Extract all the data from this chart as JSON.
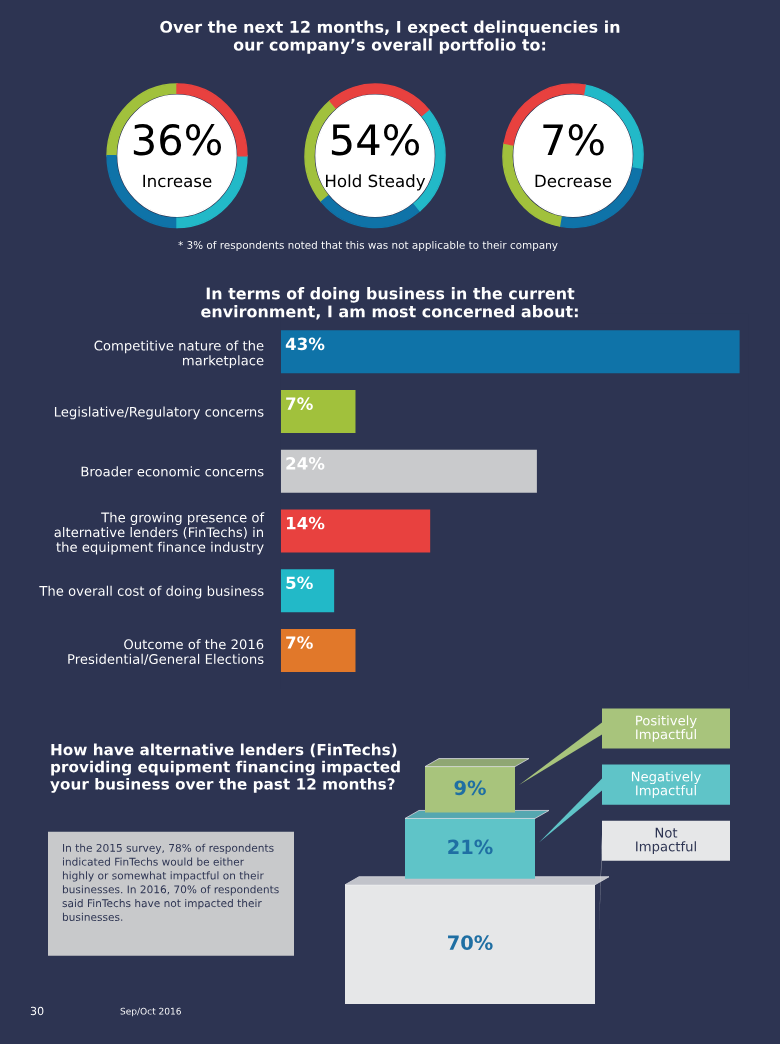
{
  "chart_data": [
    {
      "type": "other",
      "title": "Over the next 12 months, I expect delinquencies in\nour company’s overall portfolio to:",
      "categories": [
        "Increase",
        "Hold Steady",
        "Decrease"
      ],
      "values": [
        36,
        54,
        7
      ],
      "value_labels": [
        "36%",
        "54%",
        "7%"
      ],
      "annotations": [
        "* 3% of respondents noted that this was not applicable to their company"
      ]
    },
    {
      "type": "bar",
      "orientation": "horizontal",
      "title": "In terms of doing business in the current\nenvironment, I am most concerned about:",
      "categories": [
        "Competitive nature of the\nmarketplace",
        "Legislative/Regulatory concerns",
        "Broader economic concerns",
        "The growing presence of\nalternative lenders (FinTechs) in\nthe equipment finance industry",
        "The overall cost of doing business",
        "Outcome of the 2016\nPresidential/General Elections"
      ],
      "values": [
        43,
        7,
        24,
        14,
        5,
        7
      ],
      "colors": [
        "#0f73a8",
        "#a1c13c",
        "#c9cacc",
        "#e8413f",
        "#22b9c8",
        "#e1782a"
      ],
      "value_labels": [
        "43%",
        "7%",
        "24%",
        "14%",
        "5%",
        "7%"
      ]
    },
    {
      "type": "other",
      "title": "How have alternative lenders (FinTechs)\nproviding equipment financing impacted\nyour business over the past 12 months?",
      "categories": [
        "Positively\nImpactful",
        "Negatively\nImpactful",
        "Not\nImpactful"
      ],
      "values": [
        9,
        21,
        70
      ],
      "value_labels": [
        "9%",
        "21%",
        "70%"
      ],
      "colors": [
        "#a8c47c",
        "#5fc4c8",
        "#e6e7e8"
      ],
      "annotations": [
        "In the 2015 survey, 78% of respondents\nindicated FinTechs would be either\nhighly or somewhat impactful on their\nbusinesses. In 2016, 70% of respondents\nsaid FinTechs have not impacted their\nbusinesses.",
        "30",
        "Sep/Oct 2016"
      ]
    }
  ]
}
